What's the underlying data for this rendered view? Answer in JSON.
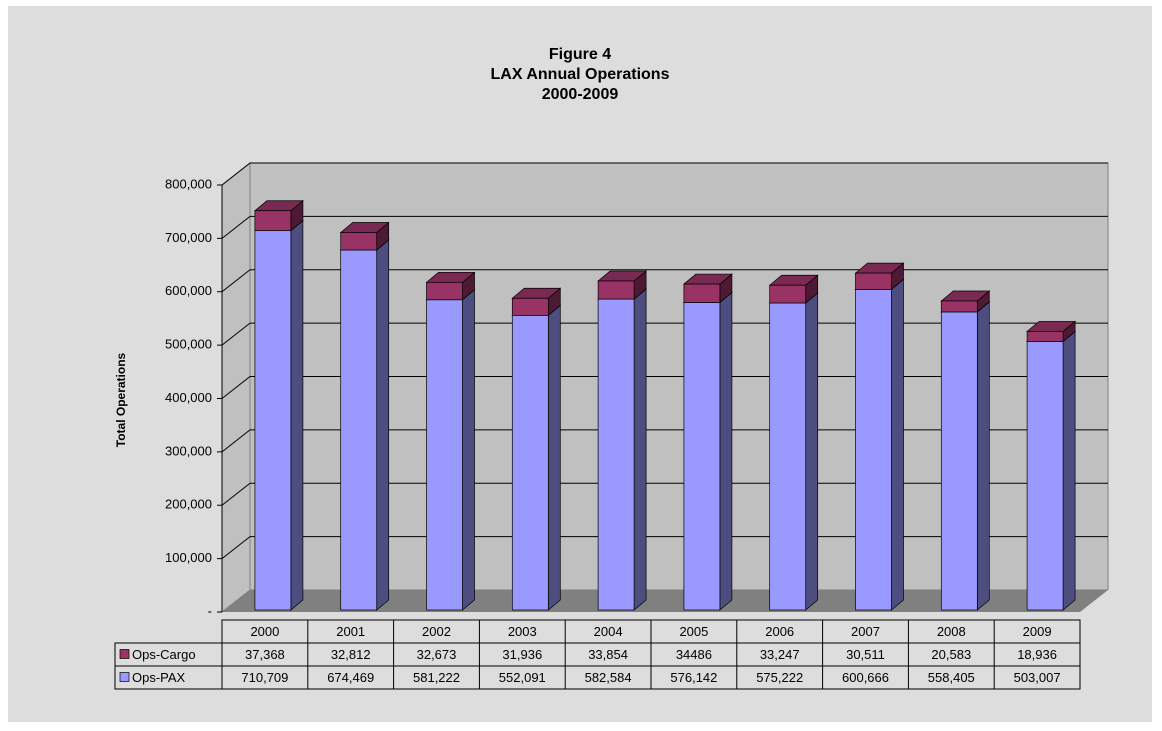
{
  "chart_data": {
    "type": "bar3d_stacked",
    "title": [
      "Figure 4",
      "LAX Annual Operations",
      "2000-2009"
    ],
    "y_axis_label": "Total Operations",
    "categories": [
      "2000",
      "2001",
      "2002",
      "2003",
      "2004",
      "2005",
      "2006",
      "2007",
      "2008",
      "2009"
    ],
    "series": [
      {
        "name": "Ops-Cargo",
        "color": "#993366",
        "values": [
          37368,
          32812,
          32673,
          31936,
          33854,
          34486,
          33247,
          30511,
          20583,
          18936
        ],
        "value_labels": [
          "37,368",
          "32,812",
          "32,673",
          "31,936",
          "33,854",
          "34486",
          "33,247",
          "30,511",
          "20,583",
          "18,936"
        ]
      },
      {
        "name": "Ops-PAX",
        "color": "#9999ff",
        "values": [
          710709,
          674469,
          581222,
          552091,
          582584,
          576142,
          575222,
          600666,
          558405,
          503007
        ],
        "value_labels": [
          "710,709",
          "674,469",
          "581,222",
          "552,091",
          "582,584",
          "576,142",
          "575,222",
          "600,666",
          "558,405",
          "503,007"
        ]
      }
    ],
    "ylim": [
      0,
      800000
    ],
    "yticks": [
      {
        "value": 0,
        "label": "-"
      },
      {
        "value": 100000,
        "label": "100,000"
      },
      {
        "value": 200000,
        "label": "200,000"
      },
      {
        "value": 300000,
        "label": "300,000"
      },
      {
        "value": 400000,
        "label": "400,000"
      },
      {
        "value": 500000,
        "label": "500,000"
      },
      {
        "value": 600000,
        "label": "600,000"
      },
      {
        "value": 700000,
        "label": "700,000"
      },
      {
        "value": 800000,
        "label": "800,000"
      }
    ],
    "grid": true
  }
}
